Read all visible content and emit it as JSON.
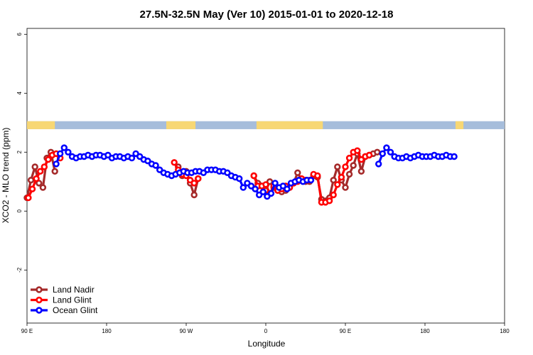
{
  "chart_data": {
    "type": "line",
    "title": "27.5N-32.5N May (Ver 10)   2015-01-01 to 2020-12-18",
    "xlabel": "Longitude",
    "ylabel": "XCO2 - MLO trend (ppm)",
    "xlim": [
      0,
      360
    ],
    "ylim": [
      -3.8,
      6.2
    ],
    "x_ticks": [
      {
        "pos": 0,
        "label": "90 E"
      },
      {
        "pos": 60,
        "label": "180"
      },
      {
        "pos": 120,
        "label": "90 W"
      },
      {
        "pos": 180,
        "label": "0"
      },
      {
        "pos": 240,
        "label": "90 E"
      },
      {
        "pos": 300,
        "label": "180"
      }
    ],
    "y_ticks": [
      {
        "value": -2,
        "label": "-2"
      },
      {
        "value": 0,
        "label": "0"
      },
      {
        "value": 2,
        "label": "2"
      },
      {
        "value": 4,
        "label": "4"
      },
      {
        "value": 6,
        "label": "6"
      }
    ],
    "grid": false,
    "legend_position": "bottom-left",
    "land_ocean_band": {
      "y_range": [
        2.78,
        3.05
      ],
      "ocean_color": "#a6bddb",
      "land_color": "#f7d774",
      "land_segments": [
        [
          0,
          21
        ],
        [
          105,
          127
        ],
        [
          173,
          223
        ],
        [
          323,
          329
        ]
      ]
    },
    "series": [
      {
        "name": "Land Nadir",
        "color": "#a52a2a",
        "x": [
          0,
          3,
          6,
          9,
          12,
          15,
          18,
          21,
          114,
          117,
          120,
          123,
          126,
          129,
          171,
          174,
          177,
          180,
          183,
          186,
          189,
          192,
          195,
          198,
          201,
          204,
          207,
          210,
          213,
          216,
          219,
          222,
          225,
          228,
          231,
          234,
          237,
          240,
          243,
          246,
          249,
          252,
          255,
          258,
          261,
          264
        ],
        "y": [
          0.45,
          1.05,
          1.5,
          0.95,
          0.8,
          1.8,
          2.0,
          1.35,
          1.5,
          1.2,
          1.35,
          0.95,
          0.55,
          1.1,
          1.2,
          0.95,
          0.85,
          0.7,
          1.0,
          0.8,
          0.7,
          0.65,
          0.7,
          0.8,
          0.95,
          1.3,
          1.05,
          1.0,
          1.0,
          1.2,
          1.15,
          0.4,
          0.35,
          0.45,
          1.05,
          1.5,
          1.05,
          0.8,
          1.25,
          1.55,
          1.95,
          1.35,
          1.85,
          1.9,
          1.95,
          2.0
        ]
      },
      {
        "name": "Land Glint",
        "color": "#ff0000",
        "x": [
          1,
          4,
          7,
          10,
          13,
          16,
          19,
          22,
          25,
          111,
          114,
          117,
          120,
          123,
          126,
          129,
          171,
          174,
          177,
          180,
          183,
          186,
          189,
          192,
          195,
          198,
          201,
          204,
          207,
          210,
          213,
          216,
          219,
          222,
          225,
          228,
          231,
          234,
          237,
          240,
          243,
          246,
          249,
          252,
          255,
          258
        ],
        "y": [
          0.45,
          0.75,
          1.1,
          1.35,
          1.5,
          1.75,
          1.9,
          1.95,
          1.8,
          1.65,
          1.4,
          1.25,
          1.2,
          1.05,
          0.95,
          1.1,
          1.2,
          0.85,
          0.85,
          0.9,
          0.6,
          0.85,
          0.7,
          0.75,
          0.85,
          0.8,
          0.95,
          1.0,
          1.1,
          1.05,
          1.05,
          1.25,
          1.2,
          0.3,
          0.3,
          0.35,
          0.55,
          0.9,
          1.15,
          1.5,
          1.8,
          2.0,
          2.05,
          1.75,
          1.85,
          1.9
        ]
      },
      {
        "name": "Ocean Glint",
        "color": "#0000ff",
        "x": [
          22,
          25,
          28,
          31,
          34,
          37,
          40,
          43,
          46,
          49,
          52,
          55,
          58,
          61,
          64,
          67,
          70,
          73,
          76,
          79,
          82,
          85,
          88,
          91,
          94,
          97,
          100,
          103,
          106,
          109,
          112,
          115,
          118,
          121,
          124,
          127,
          130,
          133,
          136,
          139,
          142,
          145,
          148,
          151,
          154,
          157,
          160,
          163,
          166,
          169,
          172,
          175,
          178,
          181,
          184,
          187,
          190,
          193,
          196,
          199,
          202,
          205,
          208,
          211,
          214,
          265,
          268,
          271,
          274,
          277,
          280,
          283,
          286,
          289,
          292,
          295,
          298,
          301,
          304,
          307,
          310,
          313,
          316,
          319,
          322
        ],
        "y": [
          1.6,
          1.95,
          2.15,
          2.0,
          1.85,
          1.8,
          1.85,
          1.85,
          1.9,
          1.85,
          1.9,
          1.9,
          1.85,
          1.9,
          1.8,
          1.85,
          1.85,
          1.8,
          1.85,
          1.8,
          1.95,
          1.85,
          1.75,
          1.7,
          1.6,
          1.55,
          1.4,
          1.3,
          1.25,
          1.2,
          1.25,
          1.3,
          1.35,
          1.3,
          1.3,
          1.35,
          1.35,
          1.3,
          1.4,
          1.4,
          1.4,
          1.35,
          1.35,
          1.3,
          1.2,
          1.15,
          1.1,
          0.8,
          0.95,
          0.85,
          0.75,
          0.55,
          0.65,
          0.5,
          0.6,
          0.95,
          0.8,
          0.85,
          0.75,
          0.95,
          1.0,
          1.05,
          1.0,
          1.05,
          1.05,
          1.6,
          1.95,
          2.15,
          2.0,
          1.85,
          1.8,
          1.8,
          1.85,
          1.8,
          1.85,
          1.9,
          1.85,
          1.85,
          1.85,
          1.9,
          1.85,
          1.85,
          1.9,
          1.85,
          1.85
        ]
      }
    ]
  }
}
